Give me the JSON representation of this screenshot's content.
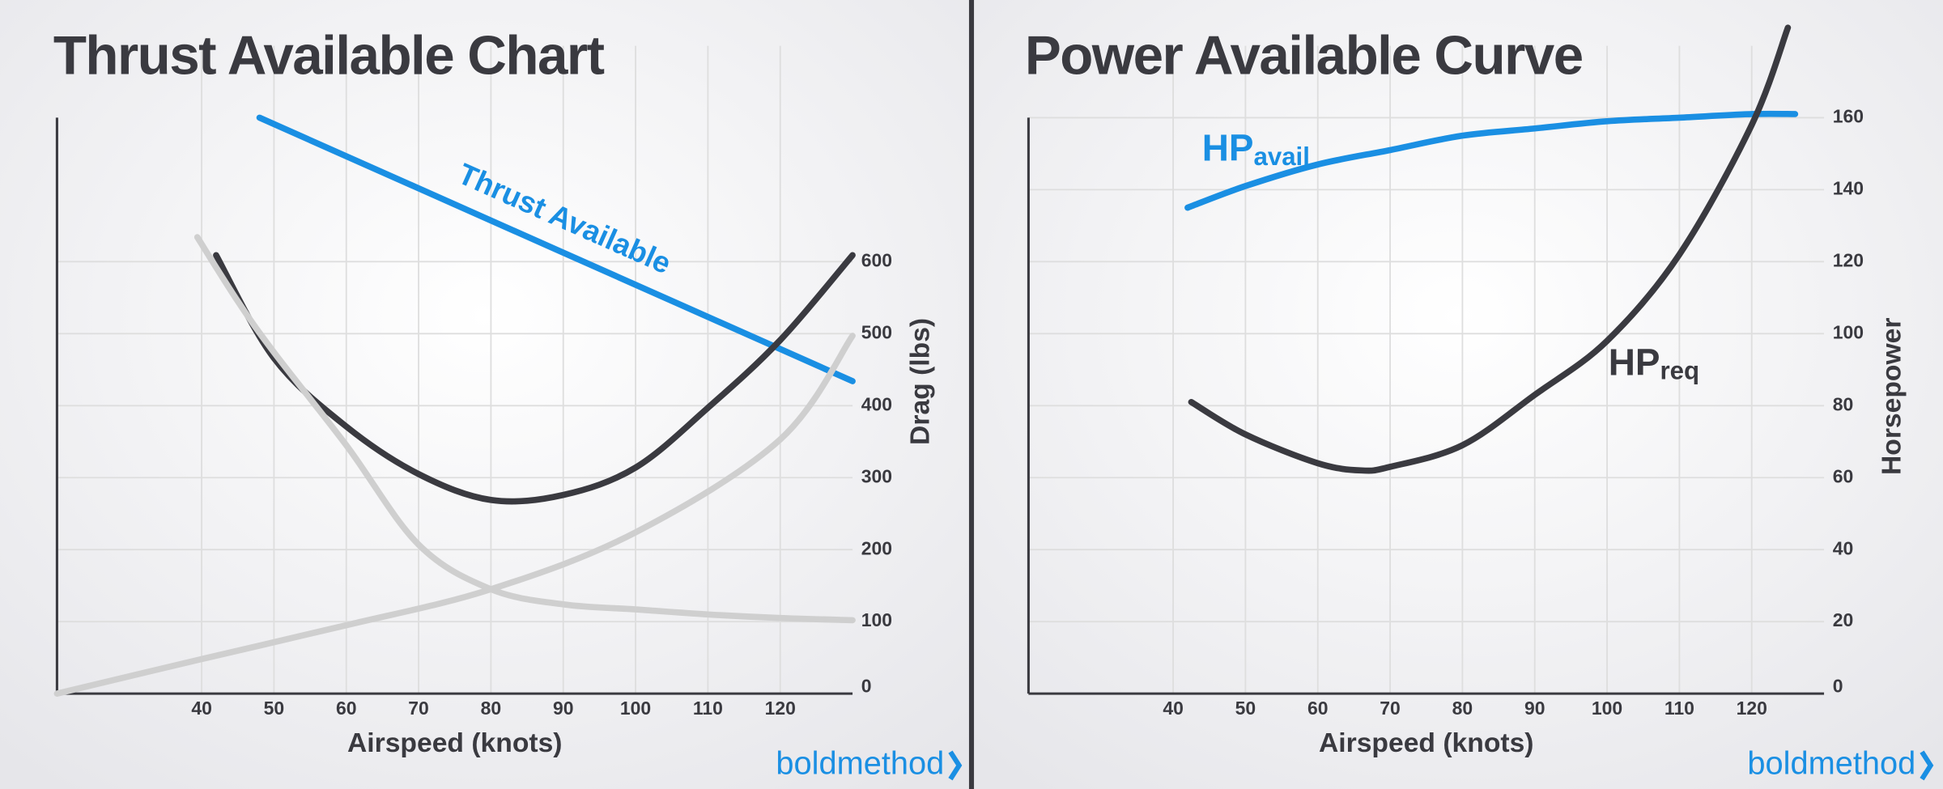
{
  "chart_data": [
    {
      "type": "line",
      "title": "Thrust Available Chart",
      "x_label": "Airspeed (knots)",
      "y_label": "Drag (lbs)",
      "watermark": "boldmethod",
      "xlim": [
        20,
        130
      ],
      "ylim": [
        0,
        800
      ],
      "xticks": [
        40,
        50,
        60,
        70,
        80,
        90,
        100,
        110,
        120
      ],
      "yticks": [
        0,
        100,
        200,
        300,
        400,
        500,
        600
      ],
      "grid": true,
      "series": [
        {
          "name": "Thrust Available",
          "color": "#1a8fe3",
          "x": [
            48,
            130
          ],
          "values": [
            800,
            434
          ]
        },
        {
          "color": "#3a3a40",
          "x": [
            42,
            50,
            60,
            70,
            80,
            90,
            100,
            110,
            120,
            130
          ],
          "values": [
            609,
            466,
            371,
            305,
            269,
            276,
            314,
            397,
            491,
            609
          ]
        },
        {
          "color": "#cfcfcf",
          "x": [
            39.4,
            45,
            50,
            60,
            70,
            80,
            90,
            100,
            110,
            120,
            130
          ],
          "values": [
            634,
            545,
            474,
            345,
            207,
            145,
            124,
            117,
            110,
            105,
            102
          ]
        },
        {
          "color": "#cfcfcf",
          "x": [
            20,
            40,
            60,
            80,
            100,
            120,
            130
          ],
          "values": [
            0,
            48,
            95,
            145,
            224,
            353,
            497
          ]
        }
      ]
    },
    {
      "type": "line",
      "title": "Power Available Curve",
      "x_label": "Airspeed (knots)",
      "y_label": "Horsepower",
      "watermark": "boldmethod",
      "xlim": [
        20,
        130
      ],
      "ylim": [
        0,
        160
      ],
      "xticks": [
        40,
        50,
        60,
        70,
        80,
        90,
        100,
        110,
        120
      ],
      "yticks": [
        0,
        20,
        40,
        60,
        80,
        100,
        120,
        140,
        160
      ],
      "grid": true,
      "series": [
        {
          "name": "HP",
          "subscript": "avail",
          "color": "#1a8fe3",
          "x": [
            42,
            50,
            60,
            70,
            80,
            90,
            100,
            110,
            120,
            126
          ],
          "values": [
            135,
            141,
            147,
            151,
            155,
            157,
            159,
            160,
            161,
            161
          ]
        },
        {
          "name": "HP",
          "subscript": "req",
          "color": "#3a3a40",
          "x": [
            42.5,
            50,
            60,
            66,
            70,
            80,
            90,
            100,
            110,
            120,
            125
          ],
          "values": [
            81,
            72,
            64,
            62,
            63,
            69,
            83,
            98,
            122,
            158,
            185
          ]
        }
      ]
    }
  ]
}
